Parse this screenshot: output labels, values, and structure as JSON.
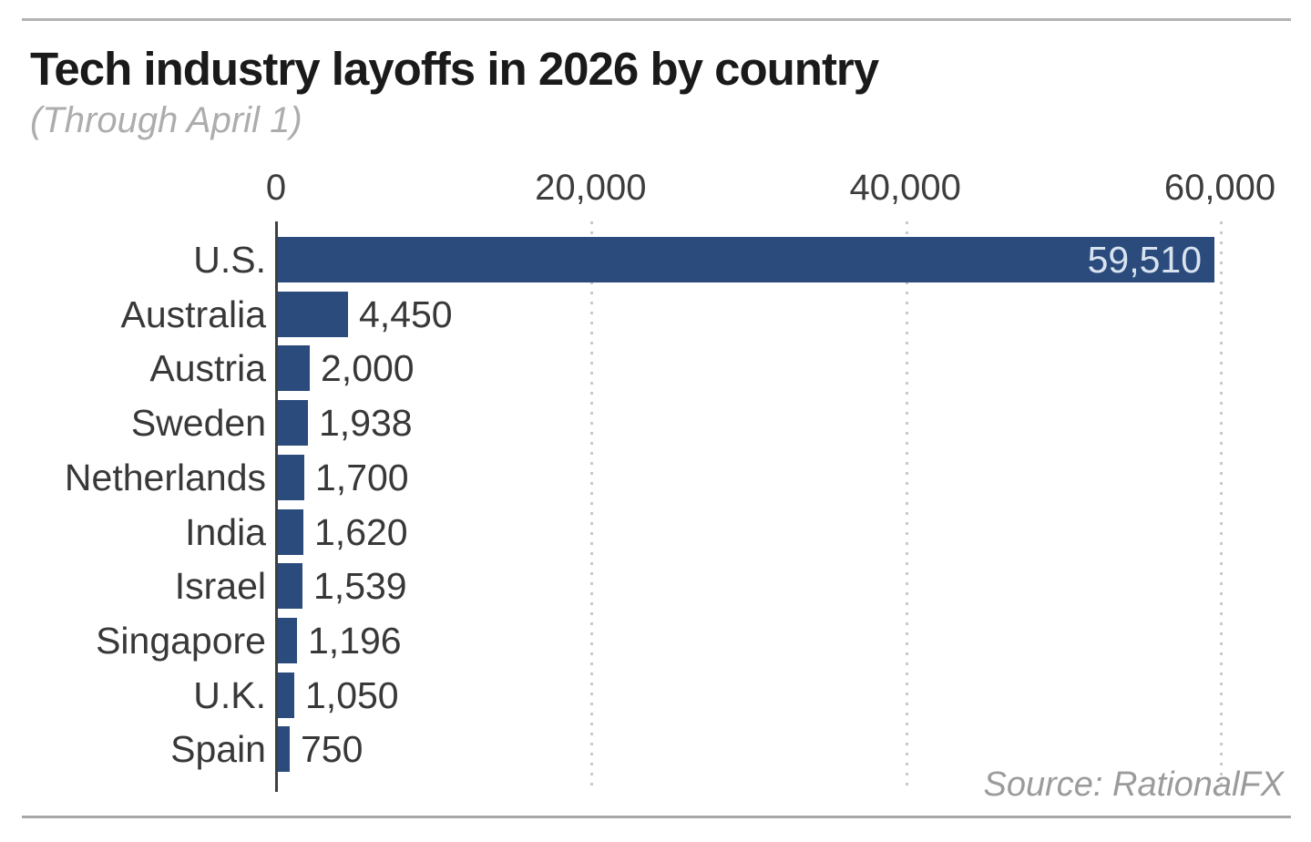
{
  "header": {
    "title": "Tech industry layoffs in 2026 by country",
    "subtitle": "(Through April 1)"
  },
  "footer": {
    "source": "Source: RationalFX"
  },
  "chart_data": {
    "type": "bar",
    "orientation": "horizontal",
    "title": "Tech industry layoffs in 2026 by country",
    "subtitle": "(Through April 1)",
    "source": "Source: RationalFX",
    "categories": [
      "U.S.",
      "Australia",
      "Austria",
      "Sweden",
      "Netherlands",
      "India",
      "Israel",
      "Singapore",
      "U.K.",
      "Spain"
    ],
    "values": [
      59510,
      4450,
      2000,
      1938,
      1700,
      1620,
      1539,
      1196,
      1050,
      750
    ],
    "value_labels": [
      "59,510",
      "4,450",
      "2,000",
      "1,938",
      "1,700",
      "1,620",
      "1,539",
      "1,196",
      "1,050",
      "750"
    ],
    "xlim": [
      0,
      60000
    ],
    "x_ticks": [
      0,
      20000,
      40000,
      60000
    ],
    "x_tick_labels": [
      "0",
      "20,000",
      "40,000",
      "60,000"
    ],
    "grid": "vertical-dotted",
    "legend": "none",
    "bar_color": "#2A4B7C",
    "inside_value_label_color": "#D9E3F0",
    "first_value_label_inside": true
  }
}
